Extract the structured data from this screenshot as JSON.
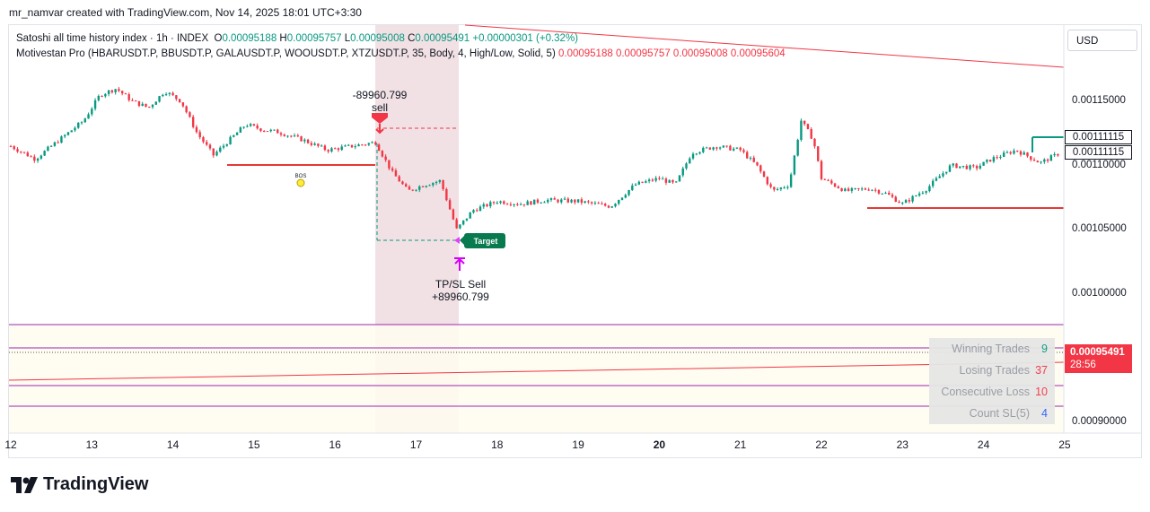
{
  "credit": "mr_namvar created with TradingView.com, Nov 14, 2025 18:01 UTC+3:30",
  "legend": {
    "line1": {
      "symbol": "Satoshi all time history index · 1h · INDEX",
      "o_label": "O",
      "o": "0.00095188",
      "h_label": "H",
      "h": "0.00095757",
      "l_label": "L",
      "l": "0.00095008",
      "c_label": "C",
      "c": "0.00095491",
      "chg": "+0.00000301 (+0.32%)"
    },
    "line2": {
      "name": "Motivestan Pro (HBARUSDT.P, BBUSDT.P, GALAUSDT.P, WOOUSDT.P, XTZUSDT.P, 35, Body, 4, High/Low, Solid, 5)",
      "v1": "0.00095188",
      "v2": "0.00095757",
      "v3": "0.00095008",
      "v4": "0.00095604"
    }
  },
  "currency": "USD",
  "price_axis": [
    "0.00115000",
    "0.00110000",
    "0.00105000",
    "0.00100000",
    "0.00090000"
  ],
  "price_boxes": [
    "0.00111115",
    "0.00111115"
  ],
  "current_price": {
    "price": "0.00095491",
    "countdown": "28:56"
  },
  "annotations": {
    "sell_value": "-89960.799",
    "sell_label": "sell",
    "bos": "BOS",
    "target": "Target",
    "tp_label": "TP/SL Sell",
    "tp_value": "+89960.799"
  },
  "stats": [
    {
      "label": "Winning Trades",
      "value": "9",
      "color": "#089981"
    },
    {
      "label": "Losing Trades",
      "value": "37",
      "color": "#f23645"
    },
    {
      "label": "Consecutive Loss",
      "value": "10",
      "color": "#f23645"
    },
    {
      "label": "Count SL(5)",
      "value": "4",
      "color": "#2962ff"
    }
  ],
  "footer_logo": "TradingView",
  "colors": {
    "up": "#089981",
    "down": "#f23645",
    "sell_zone": "#f0dde0",
    "purple": "#9c27b0"
  },
  "chart_data": {
    "type": "candlestick",
    "title": "Satoshi all time history index · 1h · INDEX",
    "x_ticks": [
      "12",
      "13",
      "14",
      "15",
      "16",
      "17",
      "18",
      "19",
      "20",
      "21",
      "22",
      "23",
      "24",
      "25"
    ],
    "ylim": [
      0.00088,
      0.0012
    ],
    "y_ticks": [
      0.00115,
      0.0011,
      0.00105,
      0.001,
      0.0009
    ],
    "close_path": [
      {
        "day": 12.0,
        "close": 0.001115
      },
      {
        "day": 12.3,
        "close": 0.001105
      },
      {
        "day": 12.6,
        "close": 0.00112
      },
      {
        "day": 12.9,
        "close": 0.001135
      },
      {
        "day": 13.1,
        "close": 0.001155
      },
      {
        "day": 13.3,
        "close": 0.00116
      },
      {
        "day": 13.5,
        "close": 0.00115
      },
      {
        "day": 13.7,
        "close": 0.001145
      },
      {
        "day": 13.9,
        "close": 0.001158
      },
      {
        "day": 14.1,
        "close": 0.00115
      },
      {
        "day": 14.3,
        "close": 0.001125
      },
      {
        "day": 14.5,
        "close": 0.001108
      },
      {
        "day": 14.7,
        "close": 0.00112
      },
      {
        "day": 14.9,
        "close": 0.001132
      },
      {
        "day": 15.1,
        "close": 0.001128
      },
      {
        "day": 15.3,
        "close": 0.001126
      },
      {
        "day": 15.6,
        "close": 0.00112
      },
      {
        "day": 15.9,
        "close": 0.001112
      },
      {
        "day": 16.2,
        "close": 0.001115
      },
      {
        "day": 16.5,
        "close": 0.001118
      },
      {
        "day": 16.7,
        "close": 0.001095
      },
      {
        "day": 16.9,
        "close": 0.00108
      },
      {
        "day": 17.1,
        "close": 0.001085
      },
      {
        "day": 17.3,
        "close": 0.001088
      },
      {
        "day": 17.5,
        "close": 0.00105
      },
      {
        "day": 17.7,
        "close": 0.001065
      },
      {
        "day": 18.0,
        "close": 0.001072
      },
      {
        "day": 18.3,
        "close": 0.00107
      },
      {
        "day": 18.6,
        "close": 0.001073
      },
      {
        "day": 19.0,
        "close": 0.001072
      },
      {
        "day": 19.4,
        "close": 0.001068
      },
      {
        "day": 19.7,
        "close": 0.001085
      },
      {
        "day": 20.0,
        "close": 0.00109
      },
      {
        "day": 20.2,
        "close": 0.001085
      },
      {
        "day": 20.4,
        "close": 0.00111
      },
      {
        "day": 20.7,
        "close": 0.001115
      },
      {
        "day": 21.0,
        "close": 0.001112
      },
      {
        "day": 21.2,
        "close": 0.0011
      },
      {
        "day": 21.4,
        "close": 0.00108
      },
      {
        "day": 21.6,
        "close": 0.001085
      },
      {
        "day": 21.75,
        "close": 0.001135
      },
      {
        "day": 21.9,
        "close": 0.00112
      },
      {
        "day": 22.0,
        "close": 0.00109
      },
      {
        "day": 22.3,
        "close": 0.00108
      },
      {
        "day": 22.6,
        "close": 0.001082
      },
      {
        "day": 22.8,
        "close": 0.001078
      },
      {
        "day": 23.0,
        "close": 0.00107
      },
      {
        "day": 23.3,
        "close": 0.001082
      },
      {
        "day": 23.6,
        "close": 0.0011
      },
      {
        "day": 23.9,
        "close": 0.001098
      },
      {
        "day": 24.1,
        "close": 0.001105
      },
      {
        "day": 24.4,
        "close": 0.001112
      },
      {
        "day": 24.7,
        "close": 0.001102
      },
      {
        "day": 24.95,
        "close": 0.00111
      }
    ]
  }
}
